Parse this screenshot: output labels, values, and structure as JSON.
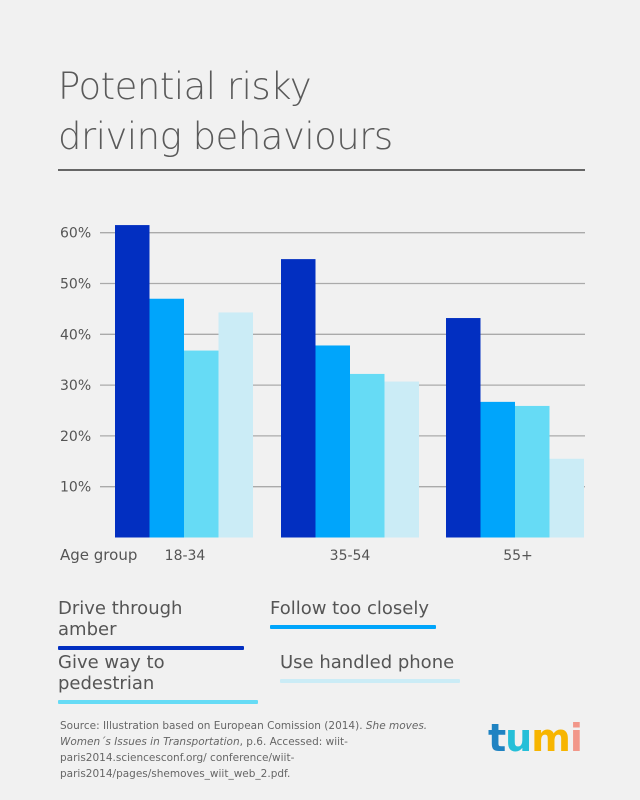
{
  "title_line1": "Potential risky",
  "title_line2": "driving behaviours",
  "chart_data": {
    "type": "bar",
    "title": "Potential risky driving behaviours",
    "xlabel": "Age group",
    "categories": [
      "18-34",
      "35-54",
      "55+"
    ],
    "ylim": [
      0,
      65
    ],
    "yticks": [
      10,
      20,
      30,
      40,
      50,
      60
    ],
    "ytick_labels": [
      "10%",
      "20%",
      "30%",
      "40%",
      "50%",
      "60%"
    ],
    "grid": true,
    "legend_position": "bottom",
    "series": [
      {
        "name": "Drive through amber",
        "color": "#022fc1",
        "values": [
          61.5,
          54.8,
          43.2
        ]
      },
      {
        "name": "Follow too closely",
        "color": "#00a5fb",
        "values": [
          47.0,
          37.8,
          26.7
        ]
      },
      {
        "name": "Give way to pedestrian",
        "color": "#66dbf5",
        "values": [
          36.8,
          32.2,
          25.9
        ]
      },
      {
        "name": "Use handled phone",
        "color": "#cbecf6",
        "values": [
          44.3,
          30.7,
          15.5
        ]
      }
    ]
  },
  "source": {
    "prefix": "Source:  Illustration based on European Comission (2014). ",
    "italic": "She moves. Women´s Issues in Transportation",
    "suffix": ", p.6. Accessed: wiit-paris2014.sciencesconf.org/ conference/wiit-paris2014/pages/shemoves_wiit_web_2.pdf."
  },
  "logo": {
    "text": "tumi",
    "colors": [
      "#1f83c2",
      "#25bfd8",
      "#f7b500",
      "#f2978a"
    ]
  }
}
